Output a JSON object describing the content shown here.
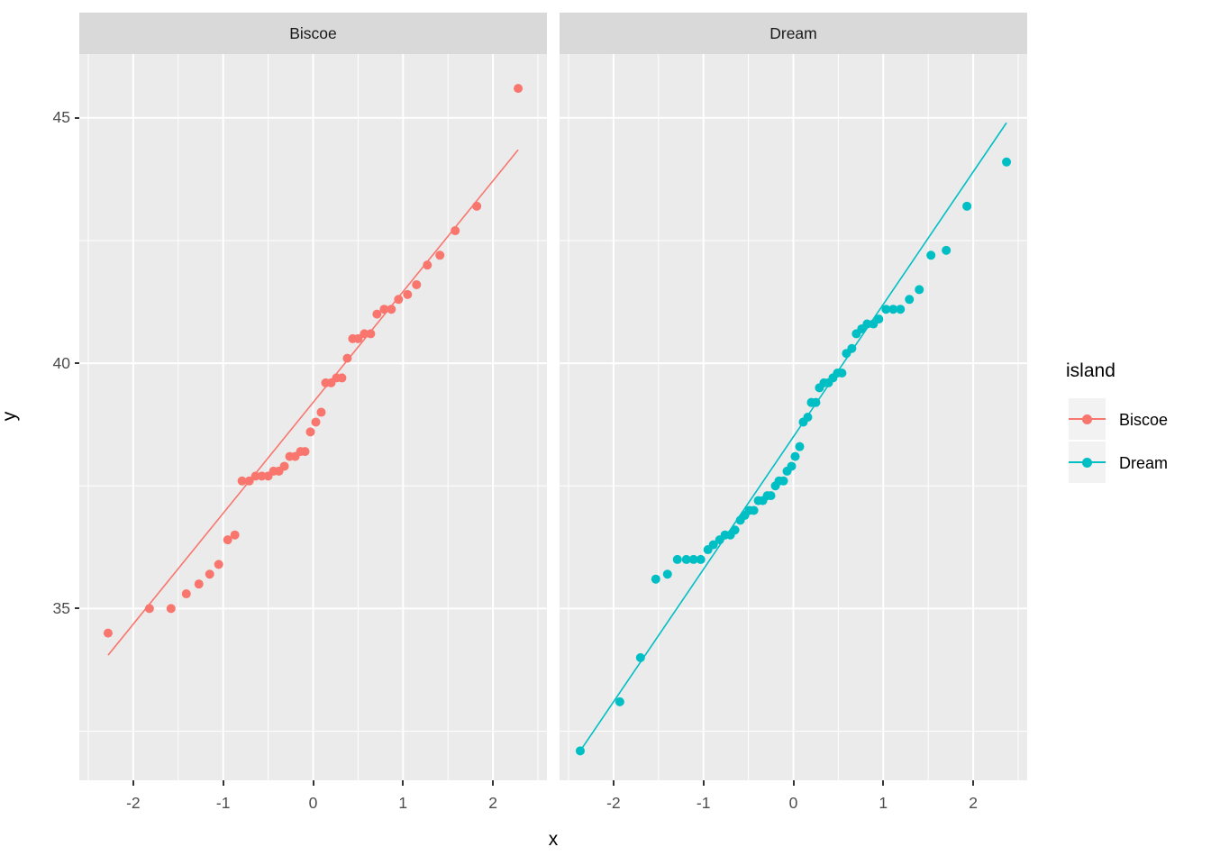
{
  "colors": {
    "biscoe": "#F8766D",
    "dream": "#00BFC4",
    "panel_background": "#EBEBEB",
    "strip_background": "#D9D9D9",
    "gridline": "#FFFFFF",
    "tick_text": "#4D4D4D",
    "legend_key_background": "#F2F2F2"
  },
  "legend": {
    "title": "island",
    "entries": [
      {
        "label": "Biscoe",
        "color": "#F8766D"
      },
      {
        "label": "Dream",
        "color": "#00BFC4"
      }
    ]
  },
  "axes": {
    "x_title": "x",
    "y_title": "y",
    "x_tick_labels": [
      "-2",
      "-1",
      "0",
      "1",
      "2"
    ],
    "y_tick_labels": [
      "35",
      "40",
      "45"
    ]
  },
  "chart_data": {
    "type": "scatter",
    "subtype": "qq-plot-faceted",
    "title": "",
    "xlabel": "x",
    "ylabel": "y",
    "grid": "on",
    "legend_position": "right",
    "legend_title": "island",
    "xlim": [
      -2.6,
      2.6
    ],
    "ylim": [
      31.5,
      46.3
    ],
    "x_ticks": [
      -2,
      -1,
      0,
      1,
      2
    ],
    "y_ticks": [
      35,
      40,
      45
    ],
    "x_minor_ticks": [
      -2.5,
      -1.5,
      -0.5,
      0.5,
      1.5,
      2.5
    ],
    "y_minor_ticks": [
      32.5,
      37.5,
      42.5
    ],
    "facets": [
      {
        "label": "Biscoe",
        "color": "#F8766D",
        "qq_line": {
          "x1": -2.28,
          "y1": 34.05,
          "x2": 2.28,
          "y2": 44.35
        },
        "points": [
          [
            -2.28,
            34.5
          ],
          [
            -1.82,
            35.0
          ],
          [
            -1.58,
            35.0
          ],
          [
            -1.41,
            35.3
          ],
          [
            -1.27,
            35.5
          ],
          [
            -1.15,
            35.7
          ],
          [
            -1.05,
            35.9
          ],
          [
            -0.95,
            36.4
          ],
          [
            -0.87,
            36.5
          ],
          [
            -0.79,
            37.6
          ],
          [
            -0.71,
            37.6
          ],
          [
            -0.64,
            37.7
          ],
          [
            -0.57,
            37.7
          ],
          [
            -0.5,
            37.7
          ],
          [
            -0.44,
            37.8
          ],
          [
            -0.38,
            37.8
          ],
          [
            -0.32,
            37.9
          ],
          [
            -0.26,
            38.1
          ],
          [
            -0.2,
            38.1
          ],
          [
            -0.14,
            38.2
          ],
          [
            -0.09,
            38.2
          ],
          [
            -0.03,
            38.6
          ],
          [
            0.03,
            38.8
          ],
          [
            0.09,
            39.0
          ],
          [
            0.14,
            39.6
          ],
          [
            0.2,
            39.6
          ],
          [
            0.26,
            39.7
          ],
          [
            0.32,
            39.7
          ],
          [
            0.38,
            40.1
          ],
          [
            0.44,
            40.5
          ],
          [
            0.5,
            40.5
          ],
          [
            0.57,
            40.6
          ],
          [
            0.64,
            40.6
          ],
          [
            0.71,
            41.0
          ],
          [
            0.79,
            41.1
          ],
          [
            0.87,
            41.1
          ],
          [
            0.95,
            41.3
          ],
          [
            1.05,
            41.4
          ],
          [
            1.15,
            41.6
          ],
          [
            1.27,
            42.0
          ],
          [
            1.41,
            42.2
          ],
          [
            1.58,
            42.7
          ],
          [
            1.82,
            43.2
          ],
          [
            2.28,
            45.6
          ]
        ]
      },
      {
        "label": "Dream",
        "color": "#00BFC4",
        "qq_line": {
          "x1": -2.37,
          "y1": 32.1,
          "x2": 2.37,
          "y2": 44.9
        },
        "points": [
          [
            -2.37,
            32.1
          ],
          [
            -1.93,
            33.1
          ],
          [
            -1.7,
            34.0
          ],
          [
            -1.53,
            35.6
          ],
          [
            -1.4,
            35.7
          ],
          [
            -1.29,
            36.0
          ],
          [
            -1.19,
            36.0
          ],
          [
            -1.11,
            36.0
          ],
          [
            -1.03,
            36.0
          ],
          [
            -0.95,
            36.2
          ],
          [
            -0.89,
            36.3
          ],
          [
            -0.82,
            36.4
          ],
          [
            -0.76,
            36.5
          ],
          [
            -0.7,
            36.5
          ],
          [
            -0.65,
            36.6
          ],
          [
            -0.59,
            36.8
          ],
          [
            -0.54,
            36.9
          ],
          [
            -0.49,
            37.0
          ],
          [
            -0.44,
            37.0
          ],
          [
            -0.39,
            37.2
          ],
          [
            -0.34,
            37.2
          ],
          [
            -0.29,
            37.3
          ],
          [
            -0.25,
            37.3
          ],
          [
            -0.2,
            37.5
          ],
          [
            -0.16,
            37.6
          ],
          [
            -0.11,
            37.6
          ],
          [
            -0.07,
            37.8
          ],
          [
            -0.02,
            37.9
          ],
          [
            0.02,
            38.1
          ],
          [
            0.07,
            38.3
          ],
          [
            0.11,
            38.8
          ],
          [
            0.16,
            38.9
          ],
          [
            0.2,
            39.2
          ],
          [
            0.25,
            39.2
          ],
          [
            0.29,
            39.5
          ],
          [
            0.34,
            39.6
          ],
          [
            0.39,
            39.6
          ],
          [
            0.44,
            39.7
          ],
          [
            0.49,
            39.8
          ],
          [
            0.54,
            39.8
          ],
          [
            0.59,
            40.2
          ],
          [
            0.65,
            40.3
          ],
          [
            0.7,
            40.6
          ],
          [
            0.76,
            40.7
          ],
          [
            0.82,
            40.8
          ],
          [
            0.89,
            40.8
          ],
          [
            0.95,
            40.9
          ],
          [
            1.03,
            41.1
          ],
          [
            1.11,
            41.1
          ],
          [
            1.19,
            41.1
          ],
          [
            1.29,
            41.3
          ],
          [
            1.4,
            41.5
          ],
          [
            1.53,
            42.2
          ],
          [
            1.7,
            42.3
          ],
          [
            1.93,
            43.2
          ],
          [
            2.37,
            44.1
          ]
        ]
      }
    ]
  }
}
